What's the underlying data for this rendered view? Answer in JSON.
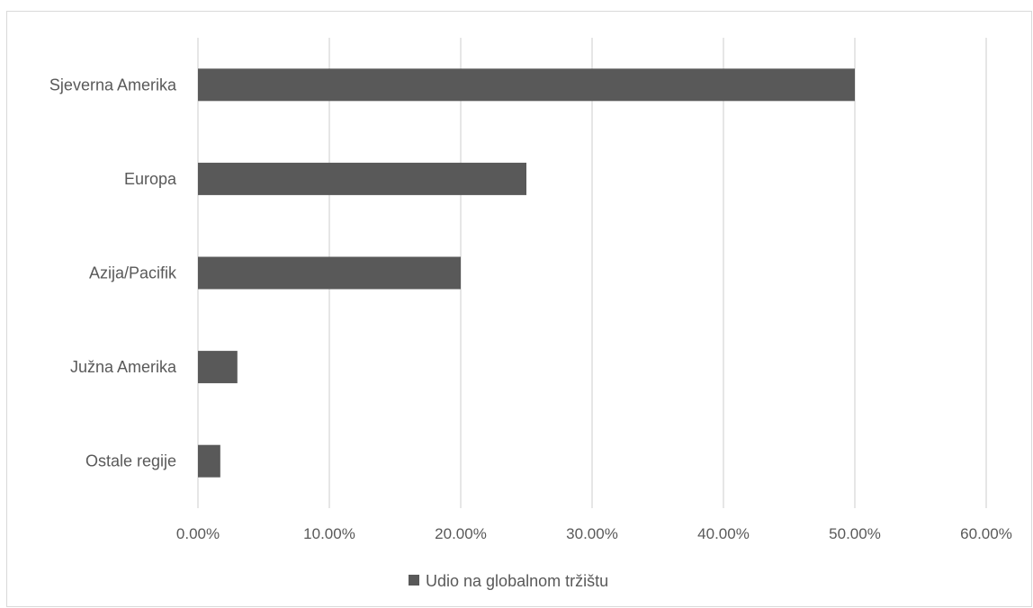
{
  "chart_data": {
    "type": "bar",
    "orientation": "horizontal",
    "categories": [
      "Sjeverna Amerika",
      "Europa",
      "Azija/Pacifik",
      "Južna Amerika",
      "Ostale regije"
    ],
    "series": [
      {
        "name": "Udio na globalnom tržištu",
        "values": [
          0.5,
          0.25,
          0.2,
          0.03,
          0.017
        ],
        "color": "#595959"
      }
    ],
    "x_ticks": [
      "0.00%",
      "10.00%",
      "20.00%",
      "30.00%",
      "40.00%",
      "50.00%",
      "60.00%"
    ],
    "xlim": [
      0,
      0.6
    ],
    "grid": true,
    "legend_position": "bottom",
    "colors": {
      "bar": "#595959",
      "grid": "#d9d9d9",
      "text": "#595959"
    }
  }
}
